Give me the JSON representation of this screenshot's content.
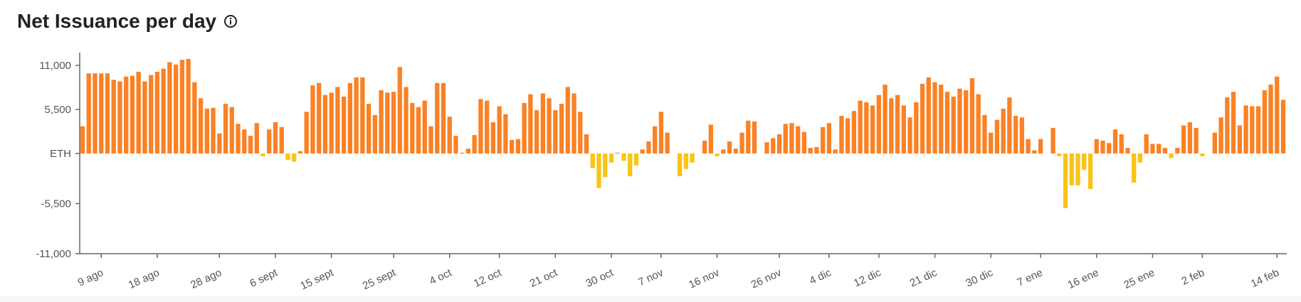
{
  "title": "Net Issuance per day",
  "info_icon": "info-icon",
  "colors": {
    "positive": "#fb8124",
    "negative": "#fac414",
    "axis": "#666666",
    "text": "#555555"
  },
  "chart_data": {
    "type": "bar",
    "title": "Net Issuance per day",
    "ylabel": "ETH",
    "ylim": [
      -11000,
      11000
    ],
    "y_ticks": [
      "11,000",
      "5,500",
      "ETH",
      "-5,500",
      "-11,000"
    ],
    "y_tick_values": [
      11000,
      5500,
      0,
      -5500,
      -11000
    ],
    "grid": false,
    "x_tick_labels": [
      {
        "label": "9 ago",
        "index": 3
      },
      {
        "label": "18 ago",
        "index": 12
      },
      {
        "label": "28 ago",
        "index": 22
      },
      {
        "label": "6 sept",
        "index": 31
      },
      {
        "label": "15 sept",
        "index": 40
      },
      {
        "label": "25 sept",
        "index": 50
      },
      {
        "label": "4 oct",
        "index": 59
      },
      {
        "label": "12 oct",
        "index": 67
      },
      {
        "label": "21 oct",
        "index": 76
      },
      {
        "label": "30 oct",
        "index": 85
      },
      {
        "label": "7 nov",
        "index": 93
      },
      {
        "label": "16 nov",
        "index": 102
      },
      {
        "label": "26 nov",
        "index": 112
      },
      {
        "label": "4 dic",
        "index": 120
      },
      {
        "label": "12 dic",
        "index": 128
      },
      {
        "label": "21 dic",
        "index": 137
      },
      {
        "label": "30 dic",
        "index": 146
      },
      {
        "label": "7 ene",
        "index": 154
      },
      {
        "label": "16 ene",
        "index": 163
      },
      {
        "label": "25 ene",
        "index": 172
      },
      {
        "label": "2 feb",
        "index": 180
      },
      {
        "label": "14 feb",
        "index": 192
      }
    ],
    "values": [
      3400,
      10000,
      10000,
      10000,
      10000,
      9200,
      9000,
      9600,
      9700,
      10200,
      9000,
      9800,
      10200,
      10600,
      11400,
      11100,
      11700,
      11800,
      8900,
      6900,
      5600,
      5700,
      2500,
      6200,
      5800,
      3700,
      3000,
      2200,
      3800,
      -300,
      3000,
      3900,
      3300,
      -700,
      -900,
      300,
      5200,
      8500,
      8800,
      7300,
      7600,
      8300,
      7100,
      8800,
      9500,
      9500,
      6200,
      4800,
      7900,
      7600,
      7700,
      10800,
      8300,
      6300,
      5800,
      6600,
      3400,
      8800,
      8800,
      4600,
      2200,
      100,
      600,
      2300,
      6800,
      6600,
      3900,
      5900,
      4900,
      1700,
      1800,
      6300,
      7400,
      5400,
      7500,
      6900,
      5400,
      6200,
      8300,
      7500,
      5200,
      2400,
      -1600,
      -3800,
      -2600,
      -1000,
      100,
      -800,
      -2500,
      -1300,
      500,
      1500,
      3400,
      5200,
      2600,
      0,
      -2500,
      -1700,
      -1000,
      0,
      1600,
      3600,
      -300,
      500,
      1500,
      600,
      2600,
      4100,
      4000,
      0,
      1400,
      1900,
      2400,
      3700,
      3800,
      3400,
      2700,
      700,
      800,
      3300,
      3800,
      500,
      4700,
      4400,
      5300,
      6600,
      6400,
      6000,
      7300,
      8600,
      6900,
      7300,
      6000,
      4500,
      6400,
      8700,
      9500,
      8900,
      8600,
      7700,
      7100,
      8100,
      7900,
      9400,
      7400,
      4800,
      2600,
      4200,
      5600,
      7000,
      4700,
      4500,
      1800,
      400,
      1800,
      0,
      3200,
      -300,
      -6000,
      -3500,
      -3500,
      -1800,
      -3900,
      1800,
      1600,
      1300,
      3000,
      2400,
      700,
      -3200,
      -1000,
      2400,
      1200,
      1200,
      700,
      -500,
      700,
      3500,
      3900,
      3200,
      -300,
      0,
      2600,
      4500,
      7000,
      7700,
      3500,
      6000,
      5900,
      5900,
      7900,
      8600,
      9600,
      6700
    ]
  }
}
